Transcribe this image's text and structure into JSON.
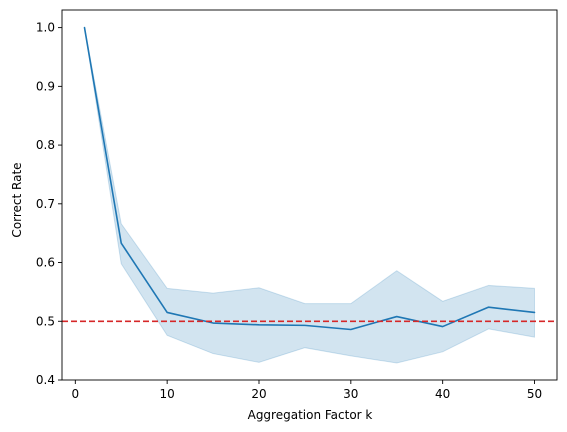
{
  "chart_data": {
    "type": "line",
    "title": "",
    "xlabel": "Aggregation Factor k",
    "ylabel": "Correct Rate",
    "xlim": [
      -1.45,
      52.45
    ],
    "ylim": [
      0.4,
      1.03
    ],
    "xticks": [
      0,
      10,
      20,
      30,
      40,
      50
    ],
    "yticks": [
      0.4,
      0.5,
      0.6,
      0.7,
      0.8,
      0.9,
      1.0
    ],
    "xtick_labels": [
      "0",
      "10",
      "20",
      "30",
      "40",
      "50"
    ],
    "ytick_labels": [
      "0.4",
      "0.5",
      "0.6",
      "0.7",
      "0.8",
      "0.9",
      "1.0"
    ],
    "grid": false,
    "series": [
      {
        "x": [
          1,
          5,
          10,
          15,
          20,
          25,
          30,
          35,
          40,
          45,
          50
        ],
        "values": [
          1.0,
          0.633,
          0.515,
          0.497,
          0.494,
          0.493,
          0.486,
          0.508,
          0.491,
          0.524,
          0.515
        ],
        "lower": [
          1.0,
          0.598,
          0.476,
          0.445,
          0.43,
          0.455,
          0.441,
          0.429,
          0.448,
          0.487,
          0.473
        ],
        "upper": [
          1.0,
          0.666,
          0.556,
          0.548,
          0.557,
          0.53,
          0.53,
          0.586,
          0.534,
          0.561,
          0.556
        ],
        "color": "#1f77b4"
      }
    ],
    "reference_line": {
      "y": 0.5,
      "color": "#d62728",
      "style": "dashed"
    }
  }
}
